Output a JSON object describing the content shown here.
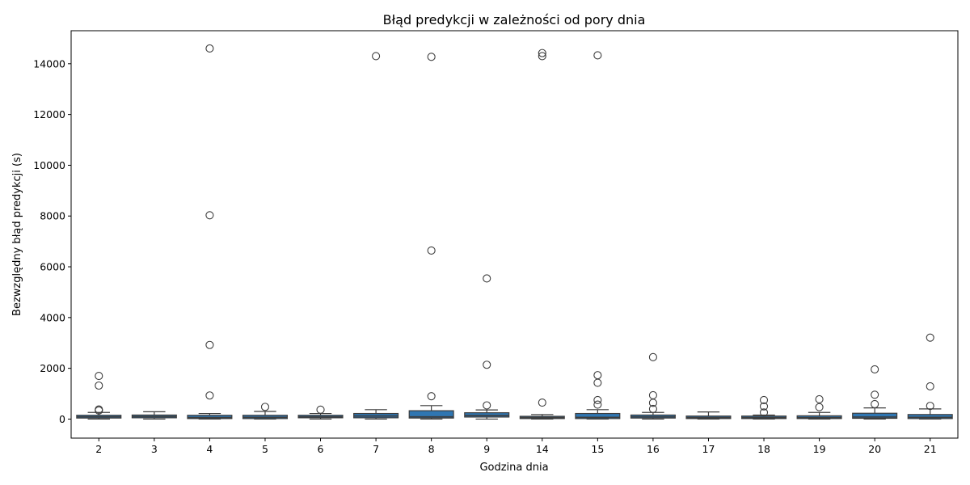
{
  "chart_data": {
    "type": "box",
    "title": "Błąd predykcji w zależności od pory dnia",
    "xlabel": "Godzina dnia",
    "ylabel": "Bezwzględny błąd predykcji (s)",
    "ylim": [
      -750,
      15300
    ],
    "yticks": [
      0,
      2000,
      4000,
      6000,
      8000,
      10000,
      12000,
      14000
    ],
    "grid": false,
    "box_color": "#2f76b2",
    "categories": [
      "2",
      "3",
      "4",
      "5",
      "6",
      "7",
      "8",
      "9",
      "14",
      "15",
      "16",
      "17",
      "18",
      "19",
      "20",
      "21"
    ],
    "boxes": [
      {
        "category": "2",
        "whislo": 0,
        "q1": 40,
        "med": 90,
        "q3": 150,
        "whishi": 260,
        "fliers": [
          340,
          380,
          1320,
          1700
        ]
      },
      {
        "category": "3",
        "whislo": 0,
        "q1": 50,
        "med": 100,
        "q3": 160,
        "whishi": 290,
        "fliers": []
      },
      {
        "category": "4",
        "whislo": 0,
        "q1": 20,
        "med": 60,
        "q3": 150,
        "whishi": 220,
        "fliers": [
          930,
          2920,
          8030,
          14600
        ]
      },
      {
        "category": "5",
        "whislo": 0,
        "q1": 20,
        "med": 70,
        "q3": 150,
        "whishi": 300,
        "fliers": [
          480
        ]
      },
      {
        "category": "6",
        "whislo": 0,
        "q1": 50,
        "med": 90,
        "q3": 150,
        "whishi": 220,
        "fliers": [
          370
        ]
      },
      {
        "category": "7",
        "whislo": 0,
        "q1": 50,
        "med": 120,
        "q3": 220,
        "whishi": 370,
        "fliers": [
          14300
        ]
      },
      {
        "category": "8",
        "whislo": 0,
        "q1": 40,
        "med": 90,
        "q3": 330,
        "whishi": 530,
        "fliers": [
          900,
          6640,
          14270
        ]
      },
      {
        "category": "9",
        "whislo": 0,
        "q1": 80,
        "med": 140,
        "q3": 250,
        "whishi": 360,
        "fliers": [
          540,
          2140,
          5540
        ]
      },
      {
        "category": "14",
        "whislo": 0,
        "q1": 20,
        "med": 60,
        "q3": 110,
        "whishi": 180,
        "fliers": [
          650,
          14300,
          14420
        ]
      },
      {
        "category": "15",
        "whislo": 0,
        "q1": 20,
        "med": 70,
        "q3": 220,
        "whishi": 370,
        "fliers": [
          570,
          750,
          1430,
          1730,
          14330
        ]
      },
      {
        "category": "16",
        "whislo": 0,
        "q1": 40,
        "med": 90,
        "q3": 160,
        "whishi": 260,
        "fliers": [
          400,
          640,
          940,
          2440
        ]
      },
      {
        "category": "17",
        "whislo": 0,
        "q1": 20,
        "med": 60,
        "q3": 120,
        "whishi": 280,
        "fliers": []
      },
      {
        "category": "18",
        "whislo": 0,
        "q1": 20,
        "med": 60,
        "q3": 120,
        "whishi": 160,
        "fliers": [
          260,
          500,
          750
        ]
      },
      {
        "category": "19",
        "whislo": 0,
        "q1": 20,
        "med": 60,
        "q3": 130,
        "whishi": 260,
        "fliers": [
          470,
          780
        ]
      },
      {
        "category": "20",
        "whislo": 0,
        "q1": 30,
        "med": 80,
        "q3": 230,
        "whishi": 440,
        "fliers": [
          590,
          960,
          1960
        ]
      },
      {
        "category": "21",
        "whislo": 0,
        "q1": 20,
        "med": 70,
        "q3": 180,
        "whishi": 400,
        "fliers": [
          520,
          1290,
          3210
        ]
      }
    ]
  }
}
